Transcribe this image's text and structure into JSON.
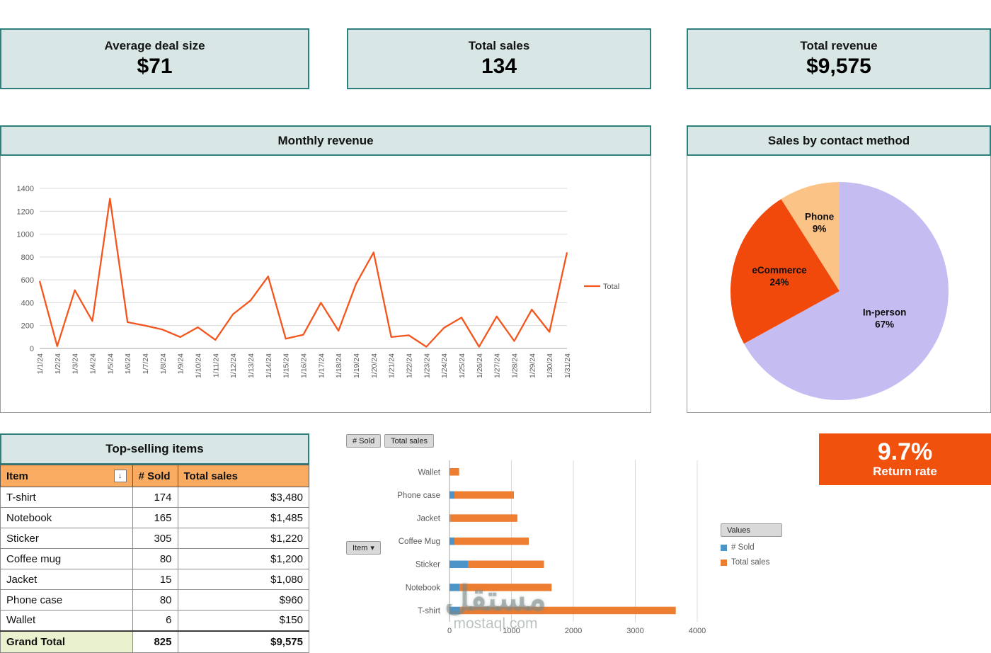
{
  "kpis": [
    {
      "label": "Average deal size",
      "value": "$71"
    },
    {
      "label": "Total sales",
      "value": "134"
    },
    {
      "label": "Total revenue",
      "value": "$9,575"
    }
  ],
  "panels": {
    "monthly_revenue_title": "Monthly revenue",
    "pie_title": "Sales by contact method",
    "table_title": "Top-selling items"
  },
  "table": {
    "columns": [
      "Item",
      "# Sold",
      "Total sales"
    ],
    "rows": [
      {
        "item": "T-shirt",
        "sold": "174",
        "sales": "$3,480"
      },
      {
        "item": "Notebook",
        "sold": "165",
        "sales": "$1,485"
      },
      {
        "item": "Sticker",
        "sold": "305",
        "sales": "$1,220"
      },
      {
        "item": "Coffee mug",
        "sold": "80",
        "sales": "$1,200"
      },
      {
        "item": "Jacket",
        "sold": "15",
        "sales": "$1,080"
      },
      {
        "item": "Phone case",
        "sold": "80",
        "sales": "$960"
      },
      {
        "item": "Wallet",
        "sold": "6",
        "sales": "$150"
      }
    ],
    "grand_total": {
      "label": "Grand Total",
      "sold": "825",
      "sales": "$9,575"
    }
  },
  "pivot_controls": {
    "field_buttons": [
      "# Sold",
      "Total sales"
    ],
    "axis_button": "Item",
    "legend_button": "Values",
    "legend_entries": [
      {
        "label": "# Sold",
        "color": "#4d94c8"
      },
      {
        "label": "Total sales",
        "color": "#ed7d31"
      }
    ]
  },
  "return_rate": {
    "value": "9.7%",
    "label": "Return rate"
  },
  "icons": {
    "sort_desc": "↓",
    "dropdown": "▾"
  },
  "watermark": {
    "line1": "مستقل",
    "line2": "mostaql.com"
  },
  "colors": {
    "teal_bg": "#d8e7e5",
    "teal_border": "#2e807d",
    "table_header_orange": "#f9ab61",
    "grand_total_green": "#eaf1cf",
    "line_orange": "#f4551c",
    "return_card_orange": "#f0520e",
    "pie_in_person": "#c5bdf1",
    "pie_ecommerce": "#f1490c",
    "pie_phone": "#fcc387",
    "bar_blue": "#4d94c8",
    "bar_orange": "#ed7d31"
  },
  "chart_data": [
    {
      "type": "line",
      "title": "Monthly revenue",
      "x": [
        "1/1/24",
        "1/2/24",
        "1/3/24",
        "1/4/24",
        "1/5/24",
        "1/6/24",
        "1/7/24",
        "1/8/24",
        "1/9/24",
        "1/10/24",
        "1/11/24",
        "1/12/24",
        "1/13/24",
        "1/14/24",
        "1/15/24",
        "1/16/24",
        "1/17/24",
        "1/18/24",
        "1/19/24",
        "1/20/24",
        "1/21/24",
        "1/22/24",
        "1/23/24",
        "1/24/24",
        "1/25/24",
        "1/26/24",
        "1/27/24",
        "1/28/24",
        "1/29/24",
        "1/30/24",
        "1/31/24"
      ],
      "series": [
        {
          "name": "Total",
          "color": "#f4551c",
          "values": [
            590,
            20,
            510,
            240,
            1310,
            230,
            200,
            165,
            100,
            185,
            75,
            300,
            420,
            630,
            85,
            120,
            400,
            155,
            565,
            840,
            100,
            115,
            15,
            180,
            270,
            15,
            280,
            65,
            340,
            145,
            840
          ]
        }
      ],
      "ylim": [
        0,
        1400
      ],
      "yticks": [
        0,
        200,
        400,
        600,
        800,
        1000,
        1200,
        1400
      ],
      "grid": true,
      "legend_position": "right"
    },
    {
      "type": "pie",
      "title": "Sales by contact method",
      "start": "top-clockwise",
      "slices": [
        {
          "label": "In-person",
          "value": 67,
          "color": "#c5bdf1"
        },
        {
          "label": "eCommerce",
          "value": 24,
          "color": "#f1490c"
        },
        {
          "label": "Phone",
          "value": 9,
          "color": "#fcc387"
        }
      ]
    },
    {
      "type": "bar",
      "subtype": "horizontal-stacked",
      "title": "",
      "categories": [
        "Wallet",
        "Phone case",
        "Jacket",
        "Coffee Mug",
        "Sticker",
        "Notebook",
        "T-shirt"
      ],
      "series": [
        {
          "name": "# Sold",
          "color": "#4d94c8",
          "values": [
            6,
            80,
            15,
            80,
            305,
            165,
            174
          ]
        },
        {
          "name": "Total sales",
          "color": "#ed7d31",
          "values": [
            150,
            960,
            1080,
            1200,
            1220,
            1485,
            3480
          ]
        }
      ],
      "xlim": [
        0,
        4000
      ],
      "xticks": [
        0,
        1000,
        2000,
        3000,
        4000
      ],
      "grid": true
    }
  ]
}
